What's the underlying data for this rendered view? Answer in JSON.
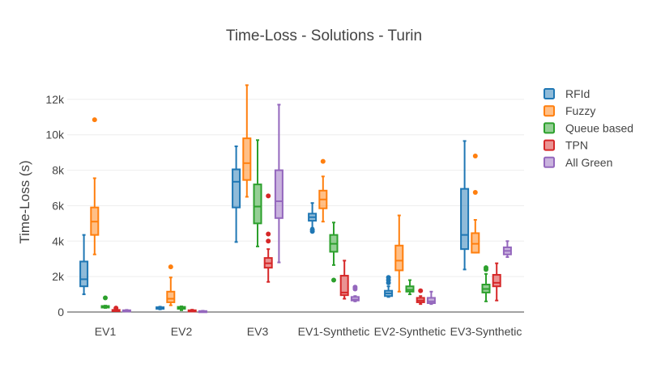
{
  "chart_data": {
    "type": "box",
    "title": "Time-Loss - Solutions - Turin",
    "xlabel": "",
    "ylabel": "Time-Loss (s)",
    "ylim": [
      0,
      13500
    ],
    "yticks": [
      0,
      2000,
      4000,
      6000,
      8000,
      10000,
      12000
    ],
    "ytick_labels": [
      "0",
      "2k",
      "4k",
      "6k",
      "8k",
      "10k",
      "12k"
    ],
    "grid": true,
    "legend_position": "right",
    "categories": [
      "EV1",
      "EV2",
      "EV3",
      "EV1-Synthetic",
      "EV2-Synthetic",
      "EV3-Synthetic"
    ],
    "series": [
      {
        "name": "RFId",
        "color": "#1f77b4",
        "boxes": [
          {
            "min": 1000,
            "q1": 1450,
            "median": 1850,
            "q3": 2850,
            "max": 4350,
            "outliers": []
          },
          {
            "min": 150,
            "q1": 180,
            "median": 220,
            "q3": 270,
            "max": 300,
            "outliers": []
          },
          {
            "min": 3950,
            "q1": 5900,
            "median": 7350,
            "q3": 8050,
            "max": 9350,
            "outliers": []
          },
          {
            "min": 4750,
            "q1": 5150,
            "median": 5350,
            "q3": 5550,
            "max": 6150,
            "outliers": [
              4550,
              4650
            ]
          },
          {
            "min": 850,
            "q1": 900,
            "median": 1050,
            "q3": 1200,
            "max": 1450,
            "outliers": [
              1650,
              1800,
              1950
            ]
          },
          {
            "min": 2400,
            "q1": 3550,
            "median": 4350,
            "q3": 6950,
            "max": 9650,
            "outliers": []
          }
        ]
      },
      {
        "name": "Fuzzy",
        "color": "#ff7f0e",
        "boxes": [
          {
            "min": 3250,
            "q1": 4350,
            "median": 5100,
            "q3": 5900,
            "max": 7550,
            "outliers": [
              10850
            ]
          },
          {
            "min": 380,
            "q1": 550,
            "median": 750,
            "q3": 1150,
            "max": 1950,
            "outliers": [
              2550
            ]
          },
          {
            "min": 6500,
            "q1": 7450,
            "median": 8400,
            "q3": 9800,
            "max": 12800,
            "outliers": []
          },
          {
            "min": 5100,
            "q1": 5850,
            "median": 6350,
            "q3": 6850,
            "max": 7650,
            "outliers": [
              8500
            ]
          },
          {
            "min": 1150,
            "q1": 2350,
            "median": 2900,
            "q3": 3750,
            "max": 5450,
            "outliers": []
          },
          {
            "min": 3350,
            "q1": 3350,
            "median": 3850,
            "q3": 4450,
            "max": 5200,
            "outliers": [
              6750,
              8800
            ]
          }
        ]
      },
      {
        "name": "Queue based",
        "color": "#2ca02c",
        "boxes": [
          {
            "min": 230,
            "q1": 250,
            "median": 300,
            "q3": 340,
            "max": 360,
            "outliers": [
              800
            ]
          },
          {
            "min": 100,
            "q1": 180,
            "median": 240,
            "q3": 290,
            "max": 320,
            "outliers": []
          },
          {
            "min": 3700,
            "q1": 5000,
            "median": 5950,
            "q3": 7200,
            "max": 9700,
            "outliers": []
          },
          {
            "min": 2650,
            "q1": 3400,
            "median": 3850,
            "q3": 4350,
            "max": 5050,
            "outliers": [
              1800
            ]
          },
          {
            "min": 1000,
            "q1": 1150,
            "median": 1250,
            "q3": 1450,
            "max": 1800,
            "outliers": []
          },
          {
            "min": 600,
            "q1": 1100,
            "median": 1300,
            "q3": 1550,
            "max": 2150,
            "outliers": [
              2400,
              2500
            ]
          }
        ]
      },
      {
        "name": "TPN",
        "color": "#d62728",
        "boxes": [
          {
            "min": 50,
            "q1": 70,
            "median": 90,
            "q3": 120,
            "max": 160,
            "outliers": [
              220
            ]
          },
          {
            "min": 30,
            "q1": 50,
            "median": 70,
            "q3": 100,
            "max": 130,
            "outliers": []
          },
          {
            "min": 1700,
            "q1": 2500,
            "median": 2750,
            "q3": 3050,
            "max": 3550,
            "outliers": [
              4000,
              4400,
              6550
            ]
          },
          {
            "min": 750,
            "q1": 950,
            "median": 1100,
            "q3": 2050,
            "max": 2900,
            "outliers": []
          },
          {
            "min": 450,
            "q1": 550,
            "median": 650,
            "q3": 800,
            "max": 900,
            "outliers": [
              1200
            ]
          },
          {
            "min": 650,
            "q1": 1450,
            "median": 1650,
            "q3": 2100,
            "max": 2750,
            "outliers": []
          }
        ]
      },
      {
        "name": "All Green",
        "color": "#9467bd",
        "boxes": [
          {
            "min": 40,
            "q1": 60,
            "median": 80,
            "q3": 100,
            "max": 120,
            "outliers": []
          },
          {
            "min": 20,
            "q1": 30,
            "median": 40,
            "q3": 55,
            "max": 70,
            "outliers": []
          },
          {
            "min": 2800,
            "q1": 5300,
            "median": 6250,
            "q3": 8000,
            "max": 11700,
            "outliers": []
          },
          {
            "min": 600,
            "q1": 650,
            "median": 700,
            "q3": 850,
            "max": 900,
            "outliers": [
              1300,
              1400
            ]
          },
          {
            "min": 450,
            "q1": 500,
            "median": 600,
            "q3": 800,
            "max": 1150,
            "outliers": []
          },
          {
            "min": 3100,
            "q1": 3250,
            "median": 3450,
            "q3": 3650,
            "max": 4000,
            "outliers": []
          }
        ]
      }
    ]
  }
}
